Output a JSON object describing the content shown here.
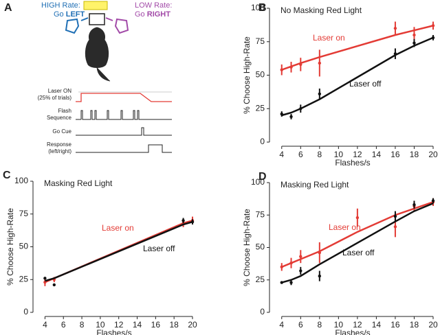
{
  "panel_a": {
    "label": "A",
    "high_line1": "HIGH Rate:",
    "high_go": "Go",
    "high_dir": "LEFT",
    "low_line1": "LOW Rate:",
    "low_go": "Go",
    "low_dir": "RIGHT",
    "traces": [
      {
        "lines": [
          "Laser ON",
          "(25% of trials)"
        ]
      },
      {
        "lines": [
          "Flash",
          "Sequence"
        ]
      },
      {
        "lines": [
          "Go Cue"
        ]
      },
      {
        "lines": [
          "Response",
          "(left/right)"
        ]
      }
    ]
  },
  "chart_data": [
    {
      "type": "line",
      "panel": "B",
      "title": "No Masking Red Light",
      "xlabel": "Flashes/s",
      "ylabel": "% Choose High-Rate",
      "xlim": [
        3,
        20
      ],
      "xticks": [
        4,
        6,
        8,
        10,
        12,
        14,
        16,
        18,
        20
      ],
      "ylim": [
        0,
        100
      ],
      "yticks": [
        0,
        25,
        50,
        75,
        100
      ],
      "series": [
        {
          "name": "Laser on",
          "color": "#e33b35",
          "x": [
            4,
            5,
            6,
            8,
            16,
            18,
            20
          ],
          "values": [
            54,
            56,
            58,
            59,
            85,
            80,
            87
          ],
          "errors": [
            4,
            4,
            5,
            10,
            5,
            6,
            3
          ],
          "fit": [
            54,
            56.5,
            59,
            63.5,
            80,
            83.5,
            87
          ]
        },
        {
          "name": "Laser off",
          "color": "#111111",
          "x": [
            4,
            5,
            6,
            8,
            16,
            18,
            20
          ],
          "values": [
            21,
            19,
            25,
            36,
            66,
            74,
            78
          ],
          "errors": [
            2,
            2,
            3,
            4,
            4,
            3,
            2
          ],
          "fit": [
            20,
            22,
            25,
            32,
            65,
            72,
            78
          ]
        }
      ]
    },
    {
      "type": "line",
      "panel": "C",
      "title": "Masking Red Light",
      "xlabel": "Flashes/s",
      "ylabel": "% Choose High-Rate",
      "xlim": [
        3,
        20
      ],
      "xticks": [
        4,
        6,
        8,
        10,
        12,
        14,
        16,
        18,
        20
      ],
      "ylim": [
        0,
        100
      ],
      "yticks": [
        0,
        25,
        50,
        75,
        100
      ],
      "series": [
        {
          "name": "Laser on",
          "color": "#e33b35",
          "x": [
            4,
            5,
            19,
            20
          ],
          "values": [
            23,
            25,
            68,
            70
          ],
          "errors": [
            3,
            2,
            3,
            3
          ],
          "fit": [
            23,
            26,
            68,
            70
          ]
        },
        {
          "name": "Laser off",
          "color": "#111111",
          "x": [
            4,
            5,
            19,
            20
          ],
          "values": [
            26,
            21,
            70,
            69
          ],
          "errors": [
            1,
            1,
            2,
            2
          ],
          "fit": [
            24,
            26,
            67,
            69
          ]
        }
      ]
    },
    {
      "type": "line",
      "panel": "D",
      "title": "Masking Red Light",
      "xlabel": "Flashes/s",
      "ylabel": "% Choose High-Rate",
      "xlim": [
        3,
        20
      ],
      "xticks": [
        4,
        6,
        8,
        10,
        12,
        14,
        16,
        18,
        20
      ],
      "ylim": [
        0,
        100
      ],
      "yticks": [
        0,
        25,
        50,
        75,
        100
      ],
      "series": [
        {
          "name": "Laser on",
          "color": "#e33b35",
          "x": [
            4,
            5,
            6,
            8,
            12,
            16,
            18,
            20
          ],
          "values": [
            35,
            38,
            43,
            46,
            73,
            66,
            82,
            85
          ],
          "errors": [
            3,
            4,
            5,
            8,
            7,
            8,
            4,
            3
          ],
          "fit": [
            35,
            38,
            41,
            47,
            62,
            75,
            80,
            85
          ]
        },
        {
          "name": "Laser off",
          "color": "#111111",
          "x": [
            4,
            5,
            6,
            8,
            16,
            18,
            20
          ],
          "values": [
            23,
            23,
            32,
            28,
            74,
            83,
            86
          ],
          "errors": [
            1,
            2,
            3,
            4,
            4,
            3,
            2
          ],
          "fit": [
            23,
            25,
            28,
            37,
            70,
            78,
            84
          ]
        }
      ]
    }
  ]
}
